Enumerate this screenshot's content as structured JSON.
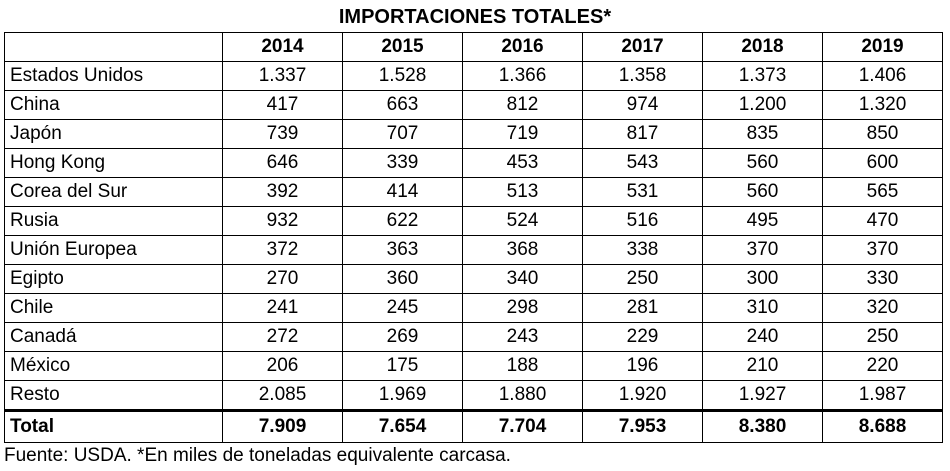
{
  "title": "IMPORTACIONES TOTALES*",
  "years": [
    "2014",
    "2015",
    "2016",
    "2017",
    "2018",
    "2019"
  ],
  "rows": [
    {
      "country": "Estados Unidos",
      "values": [
        "1.337",
        "1.528",
        "1.366",
        "1.358",
        "1.373",
        "1.406"
      ]
    },
    {
      "country": "China",
      "values": [
        "417",
        "663",
        "812",
        "974",
        "1.200",
        "1.320"
      ]
    },
    {
      "country": "Japón",
      "values": [
        "739",
        "707",
        "719",
        "817",
        "835",
        "850"
      ]
    },
    {
      "country": "Hong Kong",
      "values": [
        "646",
        "339",
        "453",
        "543",
        "560",
        "600"
      ]
    },
    {
      "country": "Corea del Sur",
      "values": [
        "392",
        "414",
        "513",
        "531",
        "560",
        "565"
      ]
    },
    {
      "country": "Rusia",
      "values": [
        "932",
        "622",
        "524",
        "516",
        "495",
        "470"
      ]
    },
    {
      "country": "Unión Europea",
      "values": [
        "372",
        "363",
        "368",
        "338",
        "370",
        "370"
      ]
    },
    {
      "country": "Egipto",
      "values": [
        "270",
        "360",
        "340",
        "250",
        "300",
        "330"
      ]
    },
    {
      "country": "Chile",
      "values": [
        "241",
        "245",
        "298",
        "281",
        "310",
        "320"
      ]
    },
    {
      "country": "Canadá",
      "values": [
        "272",
        "269",
        "243",
        "229",
        "240",
        "250"
      ]
    },
    {
      "country": "México",
      "values": [
        "206",
        "175",
        "188",
        "196",
        "210",
        "220"
      ]
    },
    {
      "country": "Resto",
      "values": [
        "2.085",
        "1.969",
        "1.880",
        "1.920",
        "1.927",
        "1.987"
      ]
    }
  ],
  "total": {
    "label": "Total",
    "values": [
      "7.909",
      "7.654",
      "7.704",
      "7.953",
      "8.380",
      "8.688"
    ]
  },
  "source": "Fuente: USDA. *En miles de toneladas equivalente carcasa."
}
